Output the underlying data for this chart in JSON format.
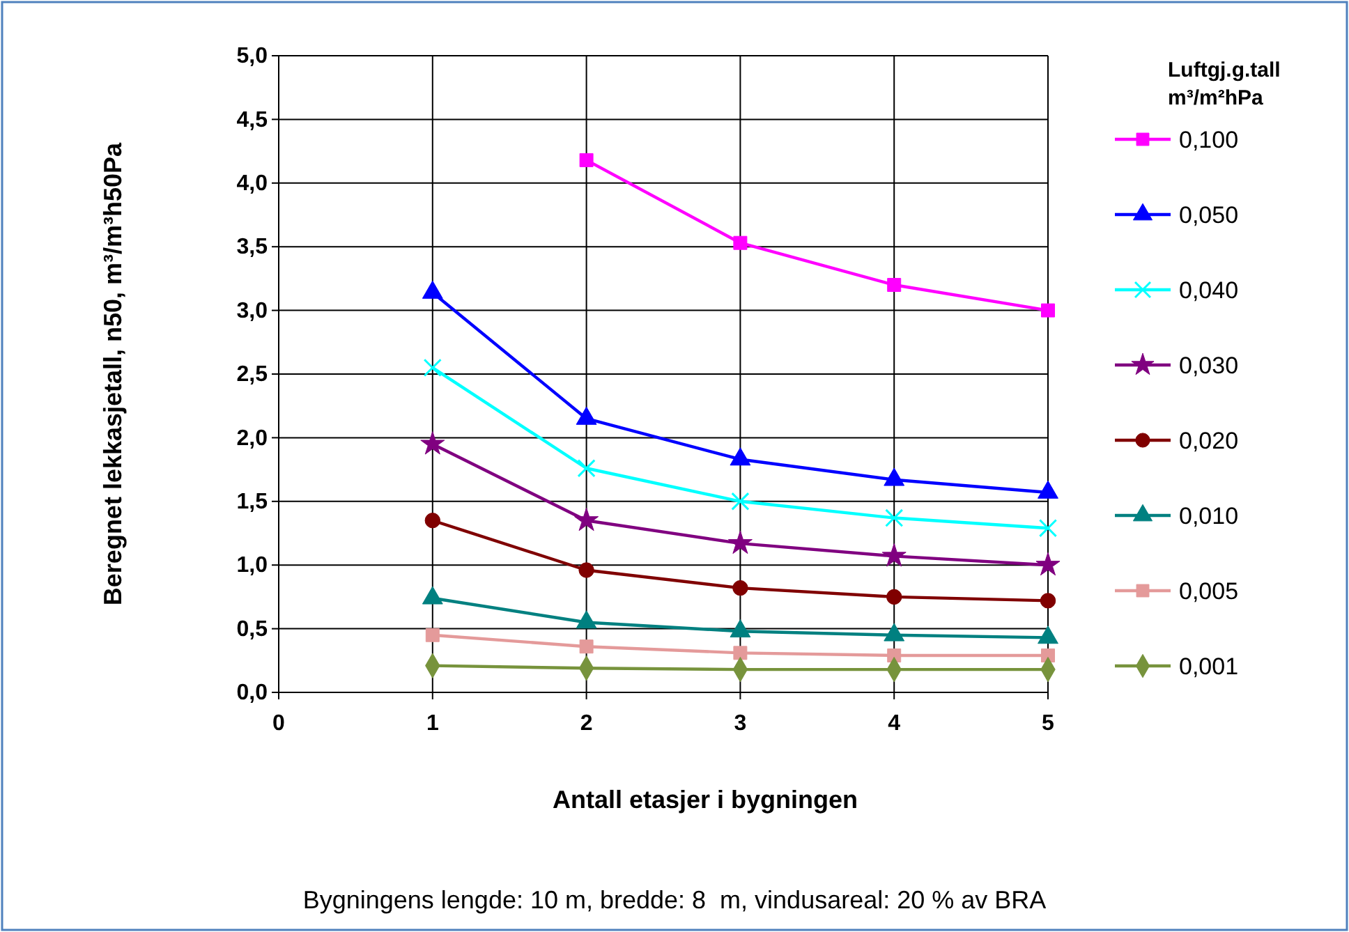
{
  "chart_data": {
    "type": "line",
    "xlabel": "Antall etasjer i bygningen",
    "ylabel": "Beregnet lekkasjetall, n50, m³/m³h50Pa",
    "legend_title": "Luftgj.g.tall\nm³/m²hPa",
    "legend": "right",
    "grid": true,
    "x": [
      1,
      2,
      3,
      4,
      5
    ],
    "xlim": [
      0,
      5
    ],
    "xticks": [
      0,
      1,
      2,
      3,
      4,
      5
    ],
    "ylim": [
      0,
      5
    ],
    "yticks": [
      {
        "value": 0,
        "label": "0,0"
      },
      {
        "value": 0.5,
        "label": "0,5"
      },
      {
        "value": 1,
        "label": "1,0"
      },
      {
        "value": 1.5,
        "label": "1,5"
      },
      {
        "value": 2,
        "label": "2,0"
      },
      {
        "value": 2.5,
        "label": "2,5"
      },
      {
        "value": 3,
        "label": "3,0"
      },
      {
        "value": 3.5,
        "label": "3,5"
      },
      {
        "value": 4,
        "label": "4,0"
      },
      {
        "value": 4.5,
        "label": "4,5"
      },
      {
        "value": 5,
        "label": "5,0"
      }
    ],
    "line_style": "solid",
    "series": [
      {
        "name": "0,100",
        "color": "#ff00ff",
        "marker": "square",
        "values": [
          null,
          4.18,
          3.53,
          3.2,
          3.0
        ]
      },
      {
        "name": "0,050",
        "color": "#0000ff",
        "marker": "triangle",
        "values": [
          3.14,
          2.15,
          1.83,
          1.67,
          1.57
        ]
      },
      {
        "name": "0,040",
        "color": "#00ffff",
        "marker": "cross",
        "values": [
          2.55,
          1.76,
          1.5,
          1.37,
          1.29
        ]
      },
      {
        "name": "0,030",
        "color": "#800080",
        "marker": "star",
        "values": [
          1.95,
          1.35,
          1.17,
          1.07,
          1.0
        ]
      },
      {
        "name": "0,020",
        "color": "#800000",
        "marker": "circle",
        "values": [
          1.35,
          0.96,
          0.82,
          0.75,
          0.72
        ]
      },
      {
        "name": "0,010",
        "color": "#008080",
        "marker": "triangle",
        "values": [
          0.74,
          0.55,
          0.48,
          0.45,
          0.43
        ]
      },
      {
        "name": "0,005",
        "color": "#e49a9a",
        "marker": "square",
        "values": [
          0.45,
          0.36,
          0.31,
          0.29,
          0.29
        ]
      },
      {
        "name": "0,001",
        "color": "#77933c",
        "marker": "diamond",
        "values": [
          0.21,
          0.19,
          0.18,
          0.18,
          0.18
        ]
      }
    ],
    "annotations": [
      "Bygningens lengde: 10 m, bredde: 8  m, vindusareal: 20 % av BRA"
    ]
  }
}
